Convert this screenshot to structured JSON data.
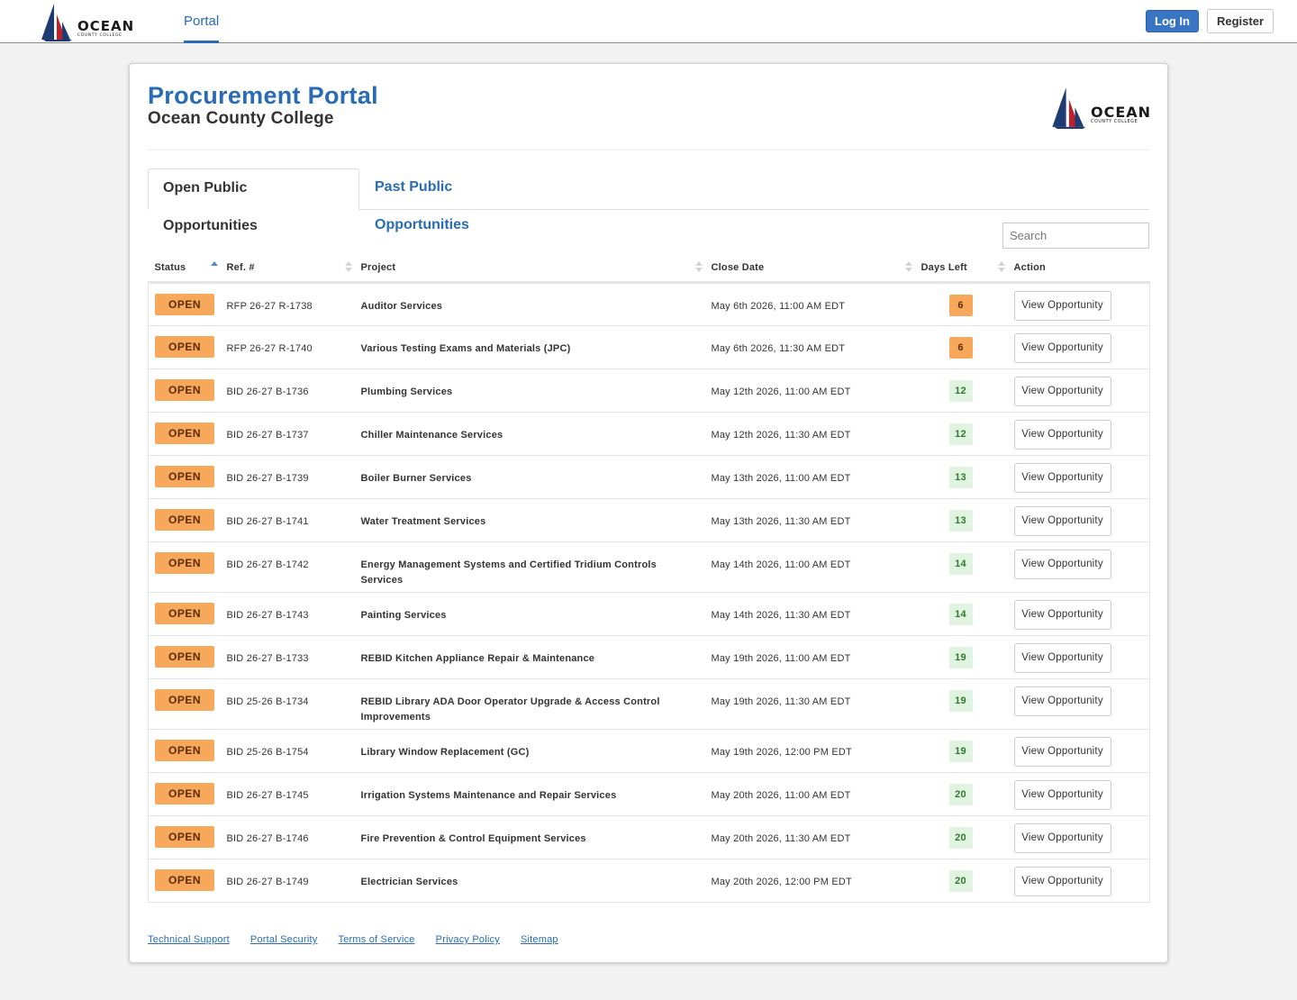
{
  "nav": {
    "brand_word": "OCEAN",
    "brand_sub": "COUNTY COLLEGE",
    "portal_label": "Portal",
    "login_label": "Log In",
    "register_label": "Register"
  },
  "header": {
    "title": "Procurement Portal",
    "subtitle": "Ocean County College"
  },
  "tabs": [
    {
      "label": "Open Public Opportunities",
      "active": true
    },
    {
      "label": "Past Public Opportunities",
      "active": false
    }
  ],
  "search": {
    "placeholder": "Search",
    "value": ""
  },
  "table": {
    "columns": [
      "Status",
      "Ref. #",
      "Project",
      "Close Date",
      "Days Left",
      "Action"
    ],
    "sorted_column": "Status",
    "rows": [
      {
        "status": "OPEN",
        "ref": "RFP 26-27 R-1738",
        "project": "Auditor Services",
        "close": "May 6th 2026, 11:00 AM EDT",
        "days": "6",
        "action": "View Opportunity"
      },
      {
        "status": "OPEN",
        "ref": "RFP 26-27 R-1740",
        "project": "Various Testing Exams and Materials (JPC)",
        "close": "May 6th 2026, 11:30 AM EDT",
        "days": "6",
        "action": "View Opportunity"
      },
      {
        "status": "OPEN",
        "ref": "BID 26-27 B-1736",
        "project": "Plumbing Services",
        "close": "May 12th 2026, 11:00 AM EDT",
        "days": "12",
        "action": "View Opportunity"
      },
      {
        "status": "OPEN",
        "ref": "BID 26-27 B-1737",
        "project": "Chiller Maintenance Services",
        "close": "May 12th 2026, 11:30 AM EDT",
        "days": "12",
        "action": "View Opportunity"
      },
      {
        "status": "OPEN",
        "ref": "BID 26-27 B-1739",
        "project": "Boiler Burner Services",
        "close": "May 13th 2026, 11:00 AM EDT",
        "days": "13",
        "action": "View Opportunity"
      },
      {
        "status": "OPEN",
        "ref": "BID 26-27 B-1741",
        "project": "Water Treatment Services",
        "close": "May 13th 2026, 11:30 AM EDT",
        "days": "13",
        "action": "View Opportunity"
      },
      {
        "status": "OPEN",
        "ref": "BID 26-27 B-1742",
        "project": "Energy Management Systems and Certified Tridium Controls Services",
        "close": "May 14th 2026, 11:00 AM EDT",
        "days": "14",
        "action": "View Opportunity"
      },
      {
        "status": "OPEN",
        "ref": "BID 26-27 B-1743",
        "project": "Painting Services",
        "close": "May 14th 2026, 11:30 AM EDT",
        "days": "14",
        "action": "View Opportunity"
      },
      {
        "status": "OPEN",
        "ref": "BID 26-27 B-1733",
        "project": "REBID Kitchen Appliance Repair & Maintenance",
        "close": "May 19th 2026, 11:00 AM EDT",
        "days": "19",
        "action": "View Opportunity"
      },
      {
        "status": "OPEN",
        "ref": "BID 25-26 B-1734",
        "project": "REBID Library ADA Door Operator Upgrade & Access Control Improvements",
        "close": "May 19th 2026, 11:30 AM EDT",
        "days": "19",
        "action": "View Opportunity"
      },
      {
        "status": "OPEN",
        "ref": "BID 25-26 B-1754",
        "project": "Library Window Replacement (GC)",
        "close": "May 19th 2026, 12:00 PM EDT",
        "days": "19",
        "action": "View Opportunity"
      },
      {
        "status": "OPEN",
        "ref": "BID 26-27 B-1745",
        "project": "Irrigation Systems Maintenance and Repair Services",
        "close": "May 20th 2026, 11:00 AM EDT",
        "days": "20",
        "action": "View Opportunity"
      },
      {
        "status": "OPEN",
        "ref": "BID 26-27 B-1746",
        "project": "Fire Prevention & Control Equipment Services",
        "close": "May 20th 2026, 11:30 AM EDT",
        "days": "20",
        "action": "View Opportunity"
      },
      {
        "status": "OPEN",
        "ref": "BID 26-27 B-1749",
        "project": "Electrician Services",
        "close": "May 20th 2026, 12:00 PM EDT",
        "days": "20",
        "action": "View Opportunity"
      }
    ]
  },
  "footer": {
    "links": [
      "Technical Support",
      "Portal Security",
      "Terms of Service",
      "Privacy Policy",
      "Sitemap"
    ]
  },
  "colors": {
    "accent": "#2a6cb4",
    "status_open": "#f7a85b",
    "days_urgent": "#f7a85b",
    "days_normal": "#e1f3e1"
  }
}
